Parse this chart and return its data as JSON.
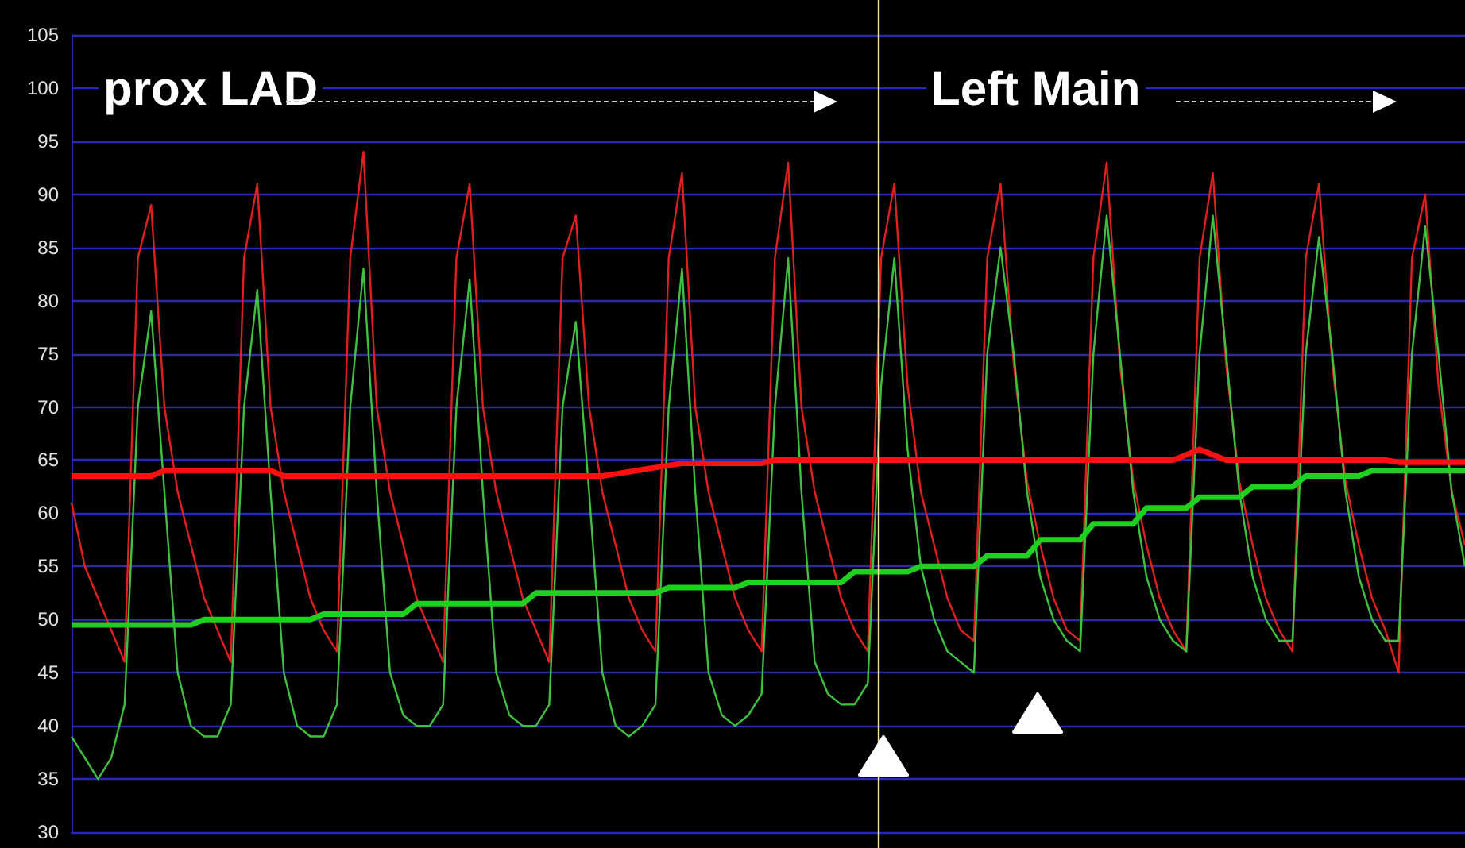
{
  "chart_data": {
    "type": "line",
    "categories": [
      null,
      null,
      null,
      null,
      null,
      null,
      null,
      null,
      null,
      null,
      null,
      null,
      null,
      null,
      null,
      null,
      null,
      null,
      null,
      null,
      null,
      null,
      null,
      null,
      null,
      null,
      null,
      null,
      null,
      null,
      null,
      null,
      null,
      null,
      null,
      null,
      null,
      null,
      null,
      null,
      null,
      null,
      null,
      null,
      null,
      null,
      null,
      null,
      null,
      null,
      null,
      null,
      null,
      null,
      null,
      null,
      null,
      null,
      null,
      null,
      null,
      null,
      null,
      null,
      null,
      null,
      null,
      null,
      null,
      null,
      null,
      null,
      null,
      null,
      null,
      null,
      null,
      null,
      null,
      null,
      null,
      null,
      null,
      null,
      null,
      null,
      null,
      null,
      null,
      null,
      null,
      null,
      null,
      null,
      null,
      null,
      null,
      null,
      null,
      null,
      null,
      null,
      null,
      null,
      null,
      null
    ],
    "series": [
      {
        "color": "#e02020",
        "values": [
          61,
          55,
          52,
          49,
          46,
          84,
          89,
          70,
          62,
          57,
          52,
          49,
          46,
          84,
          91,
          70,
          62,
          57,
          52,
          49,
          47,
          84,
          94,
          70,
          62,
          57,
          52,
          49,
          46,
          84,
          91,
          70,
          62,
          57,
          52,
          49,
          46,
          84,
          88,
          70,
          62,
          57,
          52,
          49,
          47,
          84,
          92,
          70,
          62,
          57,
          52,
          49,
          47,
          84,
          93,
          70,
          62,
          57,
          52,
          49,
          47,
          84,
          91,
          72,
          62,
          57,
          52,
          49,
          48,
          84,
          91,
          74,
          63,
          57,
          52,
          49,
          48,
          84,
          93,
          74,
          63,
          57,
          52,
          49,
          47,
          84,
          92,
          74,
          63,
          57,
          52,
          49,
          47,
          84,
          91,
          74,
          63,
          57,
          52,
          49,
          45,
          84,
          90,
          72,
          62,
          57
        ]
      },
      {
        "color": "#40c040",
        "values": [
          39,
          37,
          35,
          37,
          42,
          70,
          79,
          62,
          45,
          40,
          39,
          39,
          42,
          70,
          81,
          62,
          45,
          40,
          39,
          39,
          42,
          70,
          83,
          62,
          45,
          41,
          40,
          40,
          42,
          70,
          82,
          62,
          45,
          41,
          40,
          40,
          42,
          70,
          78,
          62,
          45,
          40,
          39,
          40,
          42,
          70,
          83,
          62,
          45,
          41,
          40,
          41,
          43,
          70,
          84,
          62,
          46,
          43,
          42,
          42,
          44,
          72,
          84,
          66,
          55,
          50,
          47,
          46,
          45,
          75,
          85,
          75,
          62,
          54,
          50,
          48,
          47,
          75,
          88,
          75,
          62,
          54,
          50,
          48,
          47,
          75,
          88,
          75,
          62,
          54,
          50,
          48,
          48,
          75,
          86,
          75,
          62,
          54,
          50,
          48,
          48,
          75,
          87,
          75,
          62,
          55
        ]
      },
      {
        "color": "#ff1010",
        "values": [
          63.5,
          63.5,
          63.5,
          63.5,
          63.5,
          63.5,
          63.5,
          64,
          64,
          64,
          64,
          64,
          64,
          64,
          64,
          64,
          63.5,
          63.5,
          63.5,
          63.5,
          63.5,
          63.5,
          63.5,
          63.5,
          63.5,
          63.5,
          63.5,
          63.5,
          63.5,
          63.5,
          63.5,
          63.5,
          63.5,
          63.5,
          63.5,
          63.5,
          63.5,
          63.5,
          63.5,
          63.5,
          63.5,
          63.7,
          63.9,
          64.1,
          64.3,
          64.5,
          64.7,
          64.7,
          64.7,
          64.7,
          64.7,
          64.7,
          64.7,
          65,
          65,
          65,
          65,
          65,
          65,
          65,
          65,
          65,
          65,
          65,
          65,
          65,
          65,
          65,
          65,
          65,
          65,
          65,
          65,
          65,
          65,
          65,
          65,
          65,
          65,
          65,
          65,
          65,
          65,
          65,
          65.5,
          66,
          65.5,
          65,
          65,
          65,
          65,
          65,
          65,
          65,
          65,
          65,
          65,
          65,
          65,
          65,
          64.8,
          64.8,
          64.8,
          64.8,
          64.8,
          64.8
        ]
      },
      {
        "color": "#20d020",
        "values": [
          49.5,
          49.5,
          49.5,
          49.5,
          49.5,
          49.5,
          49.5,
          49.5,
          49.5,
          49.5,
          50,
          50,
          50,
          50,
          50,
          50,
          50,
          50,
          50,
          50.5,
          50.5,
          50.5,
          50.5,
          50.5,
          50.5,
          50.5,
          51.5,
          51.5,
          51.5,
          51.5,
          51.5,
          51.5,
          51.5,
          51.5,
          51.5,
          52.5,
          52.5,
          52.5,
          52.5,
          52.5,
          52.5,
          52.5,
          52.5,
          52.5,
          52.5,
          53,
          53,
          53,
          53,
          53,
          53,
          53.5,
          53.5,
          53.5,
          53.5,
          53.5,
          53.5,
          53.5,
          53.5,
          54.5,
          54.5,
          54.5,
          54.5,
          54.5,
          55,
          55,
          55,
          55,
          55,
          56,
          56,
          56,
          56,
          57.5,
          57.5,
          57.5,
          57.5,
          59,
          59,
          59,
          59,
          60.5,
          60.5,
          60.5,
          60.5,
          61.5,
          61.5,
          61.5,
          61.5,
          62.5,
          62.5,
          62.5,
          62.5,
          63.5,
          63.5,
          63.5,
          63.5,
          63.5,
          64,
          64,
          64,
          64,
          64,
          64,
          64,
          64
        ]
      }
    ],
    "ylim": [
      30,
      105
    ],
    "yticks": [
      30,
      35,
      40,
      45,
      50,
      55,
      60,
      65,
      70,
      75,
      80,
      85,
      90,
      95,
      100,
      105
    ],
    "grid": "y",
    "line_style": "solid",
    "tick_labels": "y",
    "annotations": [
      "prox LAD",
      "Left Main"
    ]
  }
}
